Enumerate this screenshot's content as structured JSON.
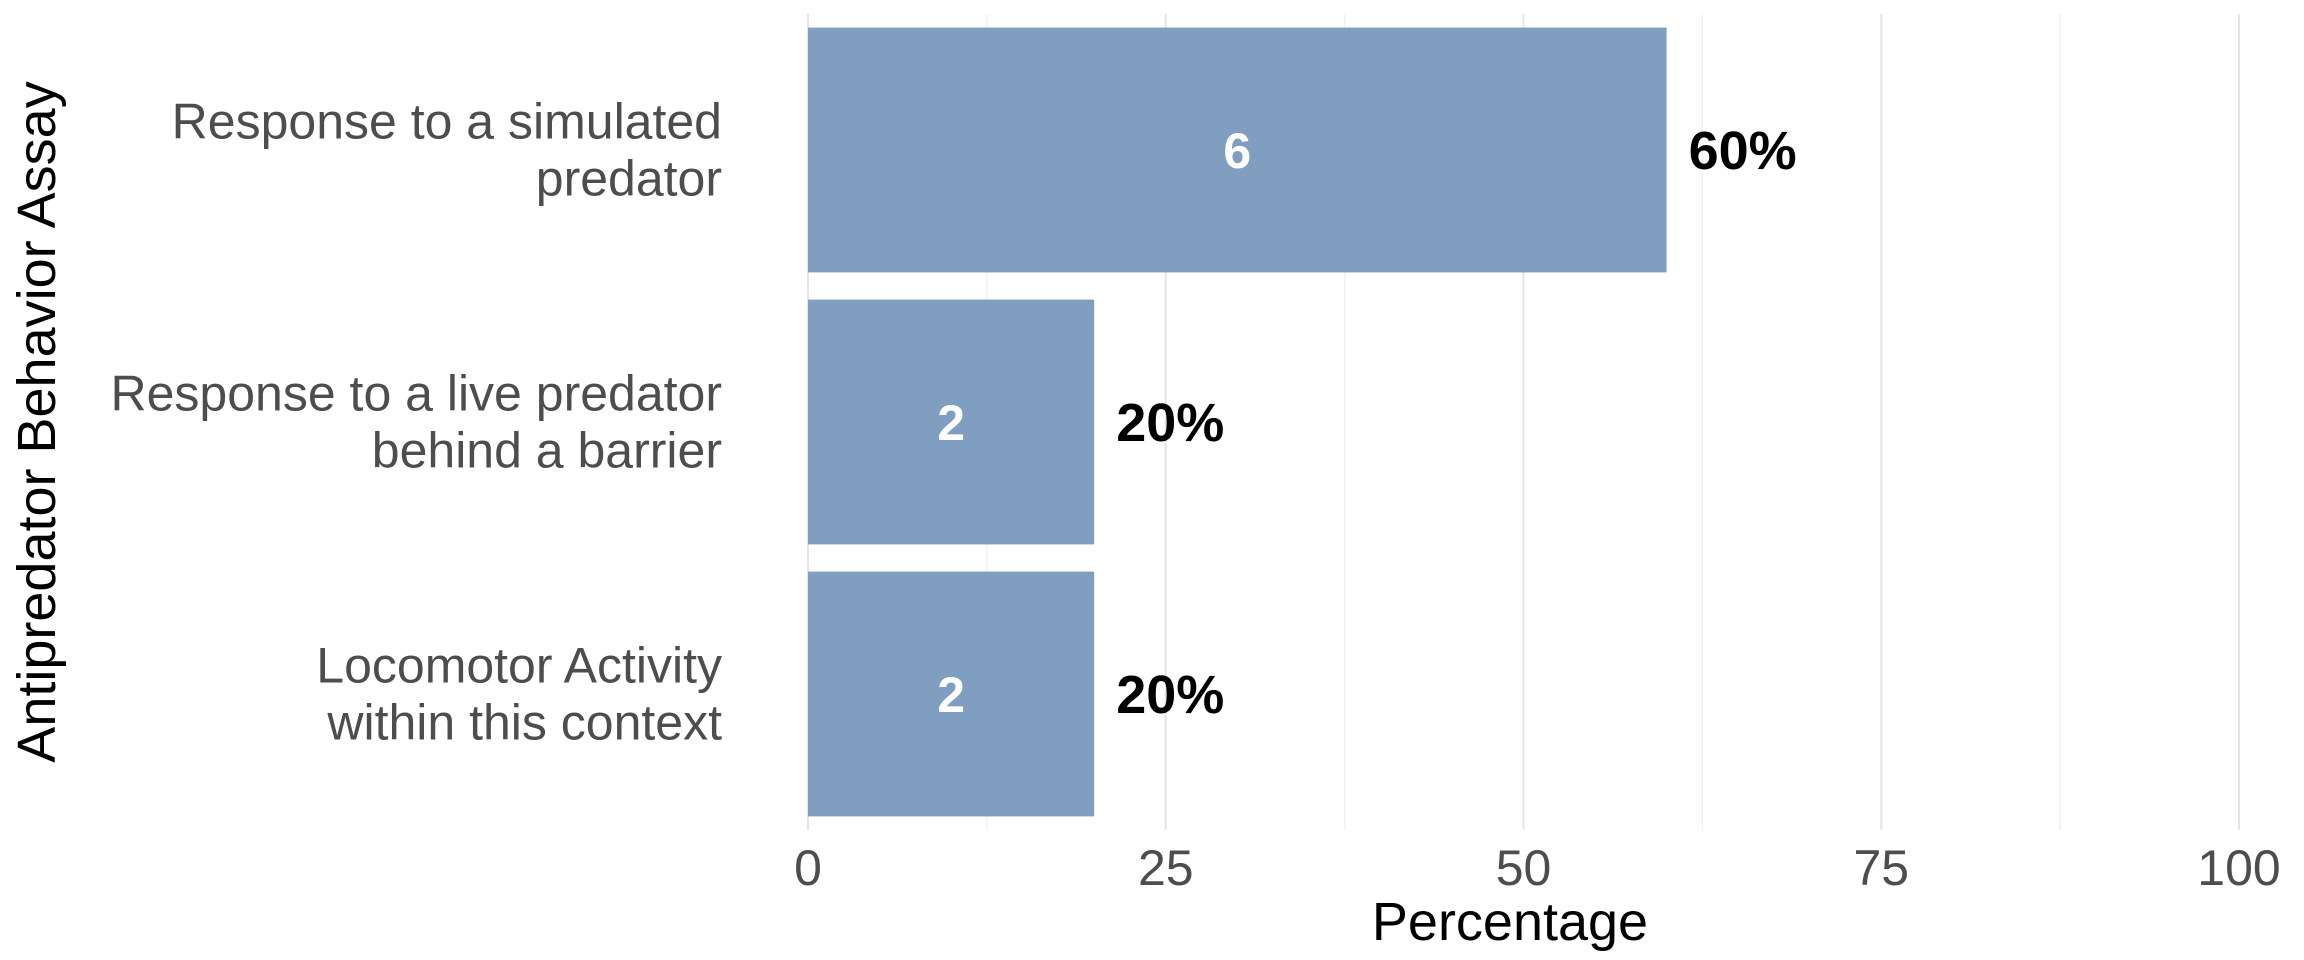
{
  "chart_data": {
    "type": "bar",
    "orientation": "horizontal",
    "xlabel": "Percentage",
    "ylabel": "Antipredator Behavior Assay",
    "xlim": [
      0,
      100
    ],
    "xticks": [
      0,
      25,
      50,
      75,
      100
    ],
    "grid": true,
    "bar_color": "#7f9ec0",
    "categories": [
      [
        "Response to a simulated",
        "predator"
      ],
      [
        "Response to a live predator",
        "behind a barrier"
      ],
      [
        "Locomotor Activity",
        "within this context"
      ]
    ],
    "values": [
      60,
      20,
      20
    ],
    "counts": [
      6,
      2,
      2
    ],
    "percent_labels": [
      "60%",
      "20%",
      "20%"
    ]
  }
}
